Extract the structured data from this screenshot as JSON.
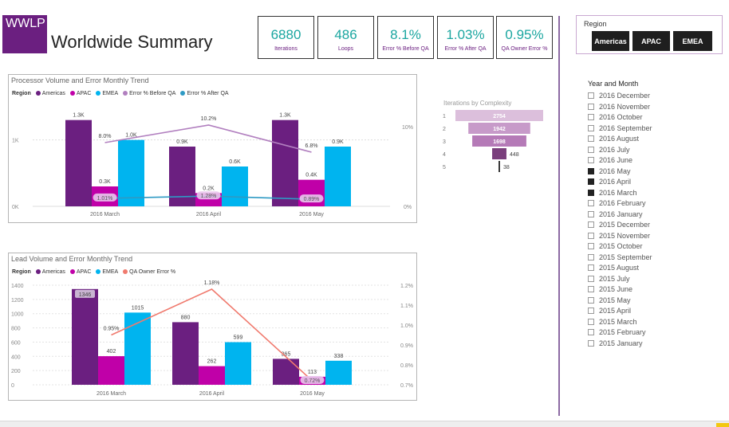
{
  "logo_text": "WWLP",
  "page_title": "Worldwide Summary",
  "kpis": [
    {
      "value": "6880",
      "label": "Iterations"
    },
    {
      "value": "486",
      "label": "Loops"
    },
    {
      "value": "8.1%",
      "label": "Error % Before QA"
    },
    {
      "value": "1.03%",
      "label": "Error % After QA"
    },
    {
      "value": "0.95%",
      "label": "QA Owner Error %"
    }
  ],
  "region_slicer": {
    "title": "Region",
    "buttons": [
      "Americas",
      "APAC",
      "EMEA"
    ]
  },
  "date_slicer": {
    "title": "Year and Month",
    "items": [
      {
        "label": "2016 December",
        "checked": false
      },
      {
        "label": "2016 November",
        "checked": false
      },
      {
        "label": "2016 October",
        "checked": false
      },
      {
        "label": "2016 September",
        "checked": false
      },
      {
        "label": "2016 August",
        "checked": false
      },
      {
        "label": "2016 July",
        "checked": false
      },
      {
        "label": "2016 June",
        "checked": false
      },
      {
        "label": "2016 May",
        "checked": true
      },
      {
        "label": "2016 April",
        "checked": true
      },
      {
        "label": "2016 March",
        "checked": true
      },
      {
        "label": "2016 February",
        "checked": false
      },
      {
        "label": "2016 January",
        "checked": false
      },
      {
        "label": "2015 December",
        "checked": false
      },
      {
        "label": "2015 November",
        "checked": false
      },
      {
        "label": "2015 October",
        "checked": false
      },
      {
        "label": "2015 September",
        "checked": false
      },
      {
        "label": "2015 August",
        "checked": false
      },
      {
        "label": "2015 July",
        "checked": false
      },
      {
        "label": "2015 June",
        "checked": false
      },
      {
        "label": "2015 May",
        "checked": false
      },
      {
        "label": "2015 April",
        "checked": false
      },
      {
        "label": "2015 March",
        "checked": false
      },
      {
        "label": "2015 February",
        "checked": false
      },
      {
        "label": "2015 January",
        "checked": false
      }
    ]
  },
  "colors": {
    "americas": "#6b1f80",
    "apac": "#c000a8",
    "emea": "#00b4ef",
    "err_before": "#b17fbf",
    "err_after": "#2e9ac4",
    "qa_owner": "#f07a6e",
    "kpi_value": "#1aa6a0"
  },
  "chart_data": [
    {
      "type": "bar",
      "title": "Processor Volume and Error Monthly Trend",
      "legend_title": "Region",
      "legend": [
        "Americas",
        "APAC",
        "EMEA",
        "Error % Before QA",
        "Error % After QA"
      ],
      "categories": [
        "2016 March",
        "2016 April",
        "2016 May"
      ],
      "series": [
        {
          "name": "Americas",
          "values": [
            1300,
            900,
            1300
          ],
          "labels": [
            "1.3K",
            "0.9K",
            "1.3K"
          ]
        },
        {
          "name": "APAC",
          "values": [
            300,
            200,
            400
          ],
          "labels": [
            "0.3K",
            "0.2K",
            "0.4K"
          ]
        },
        {
          "name": "EMEA",
          "values": [
            1000,
            600,
            900
          ],
          "labels": [
            "1.0K",
            "0.6K",
            "0.9K"
          ]
        }
      ],
      "line_series": [
        {
          "name": "Error % Before QA",
          "values": [
            8.0,
            10.2,
            6.8
          ],
          "labels": [
            "8.0%",
            "10.2%",
            "6.8%"
          ]
        },
        {
          "name": "Error % After QA",
          "values": [
            1.01,
            1.28,
            0.89
          ],
          "labels": [
            "1.01%",
            "1.28%",
            "0.89%"
          ]
        }
      ],
      "y_ticks": [
        "0K",
        "1K"
      ],
      "y_right_ticks": [
        "0%",
        "10%"
      ],
      "ylim": [
        0,
        1500
      ],
      "ylim_right": [
        0,
        12.5
      ]
    },
    {
      "type": "bar",
      "title": "Lead Volume and Error Monthly Trend",
      "legend_title": "Region",
      "legend": [
        "Americas",
        "APAC",
        "EMEA",
        "QA Owner Error %"
      ],
      "categories": [
        "2016 March",
        "2016 April",
        "2016 May"
      ],
      "series": [
        {
          "name": "Americas",
          "values": [
            1346,
            880,
            365
          ],
          "labels": [
            "1346",
            "880",
            "365"
          ]
        },
        {
          "name": "APAC",
          "values": [
            402,
            262,
            113
          ],
          "labels": [
            "402",
            "262",
            "113"
          ]
        },
        {
          "name": "EMEA",
          "values": [
            1015,
            599,
            338
          ],
          "labels": [
            "1015",
            "599",
            "338"
          ]
        }
      ],
      "line_series": [
        {
          "name": "QA Owner Error %",
          "values": [
            0.95,
            1.18,
            0.72
          ],
          "labels": [
            "0.95%",
            "1.18%",
            "0.72%"
          ]
        }
      ],
      "y_ticks": [
        "0",
        "200",
        "400",
        "600",
        "800",
        "1000",
        "1200",
        "1400"
      ],
      "y_right_ticks": [
        "0.7%",
        "0.8%",
        "0.9%",
        "1.0%",
        "1.1%",
        "1.2%"
      ],
      "ylim": [
        0,
        1400
      ],
      "ylim_right": [
        0.7,
        1.2
      ]
    },
    {
      "type": "funnel",
      "title": "Iterations by Complexity",
      "categories": [
        "1",
        "2",
        "3",
        "4",
        "5"
      ],
      "values": [
        2754,
        1942,
        1698,
        448,
        38
      ]
    }
  ]
}
